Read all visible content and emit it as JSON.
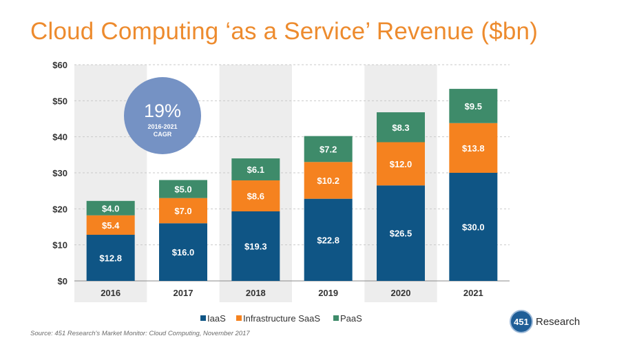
{
  "chart_data": {
    "type": "bar",
    "stacked": true,
    "title": "Cloud Computing ‘as a Service’ Revenue ($bn)",
    "categories": [
      "2016",
      "2017",
      "2018",
      "2019",
      "2020",
      "2021"
    ],
    "series": [
      {
        "name": "IaaS",
        "color": "#0F5585",
        "values": [
          12.8,
          16.0,
          19.3,
          22.8,
          26.5,
          30.0
        ],
        "labels": [
          "$12.8",
          "$16.0",
          "$19.3",
          "$22.8",
          "$26.5",
          "$30.0"
        ]
      },
      {
        "name": "Infrastructure SaaS",
        "color": "#F5821F",
        "values": [
          5.4,
          7.0,
          8.6,
          10.2,
          12.0,
          13.8
        ],
        "labels": [
          "$5.4",
          "$7.0",
          "$8.6",
          "$10.2",
          "$12.0",
          "$13.8"
        ]
      },
      {
        "name": "PaaS",
        "color": "#3E8B6A",
        "values": [
          4.0,
          5.0,
          6.1,
          7.2,
          8.3,
          9.5
        ],
        "labels": [
          "$4.0",
          "$5.0",
          "$6.1",
          "$7.2",
          "$8.3",
          "$9.5"
        ]
      }
    ],
    "yticks": [
      0,
      10,
      20,
      30,
      40,
      50,
      60
    ],
    "ytick_labels": [
      "$0",
      "$10",
      "$20",
      "$30",
      "$40",
      "$50",
      "$60"
    ],
    "ylim": [
      0,
      60
    ],
    "legend_position": "bottom-center",
    "annotation": {
      "value": "19%",
      "line1": "2016-2021",
      "line2": "CAGR",
      "color": "#7592C4"
    }
  },
  "source": "Source: 451 Research's Market Monitor: Cloud Computing, November 2017",
  "logo": {
    "number": "451",
    "name": "Research"
  }
}
